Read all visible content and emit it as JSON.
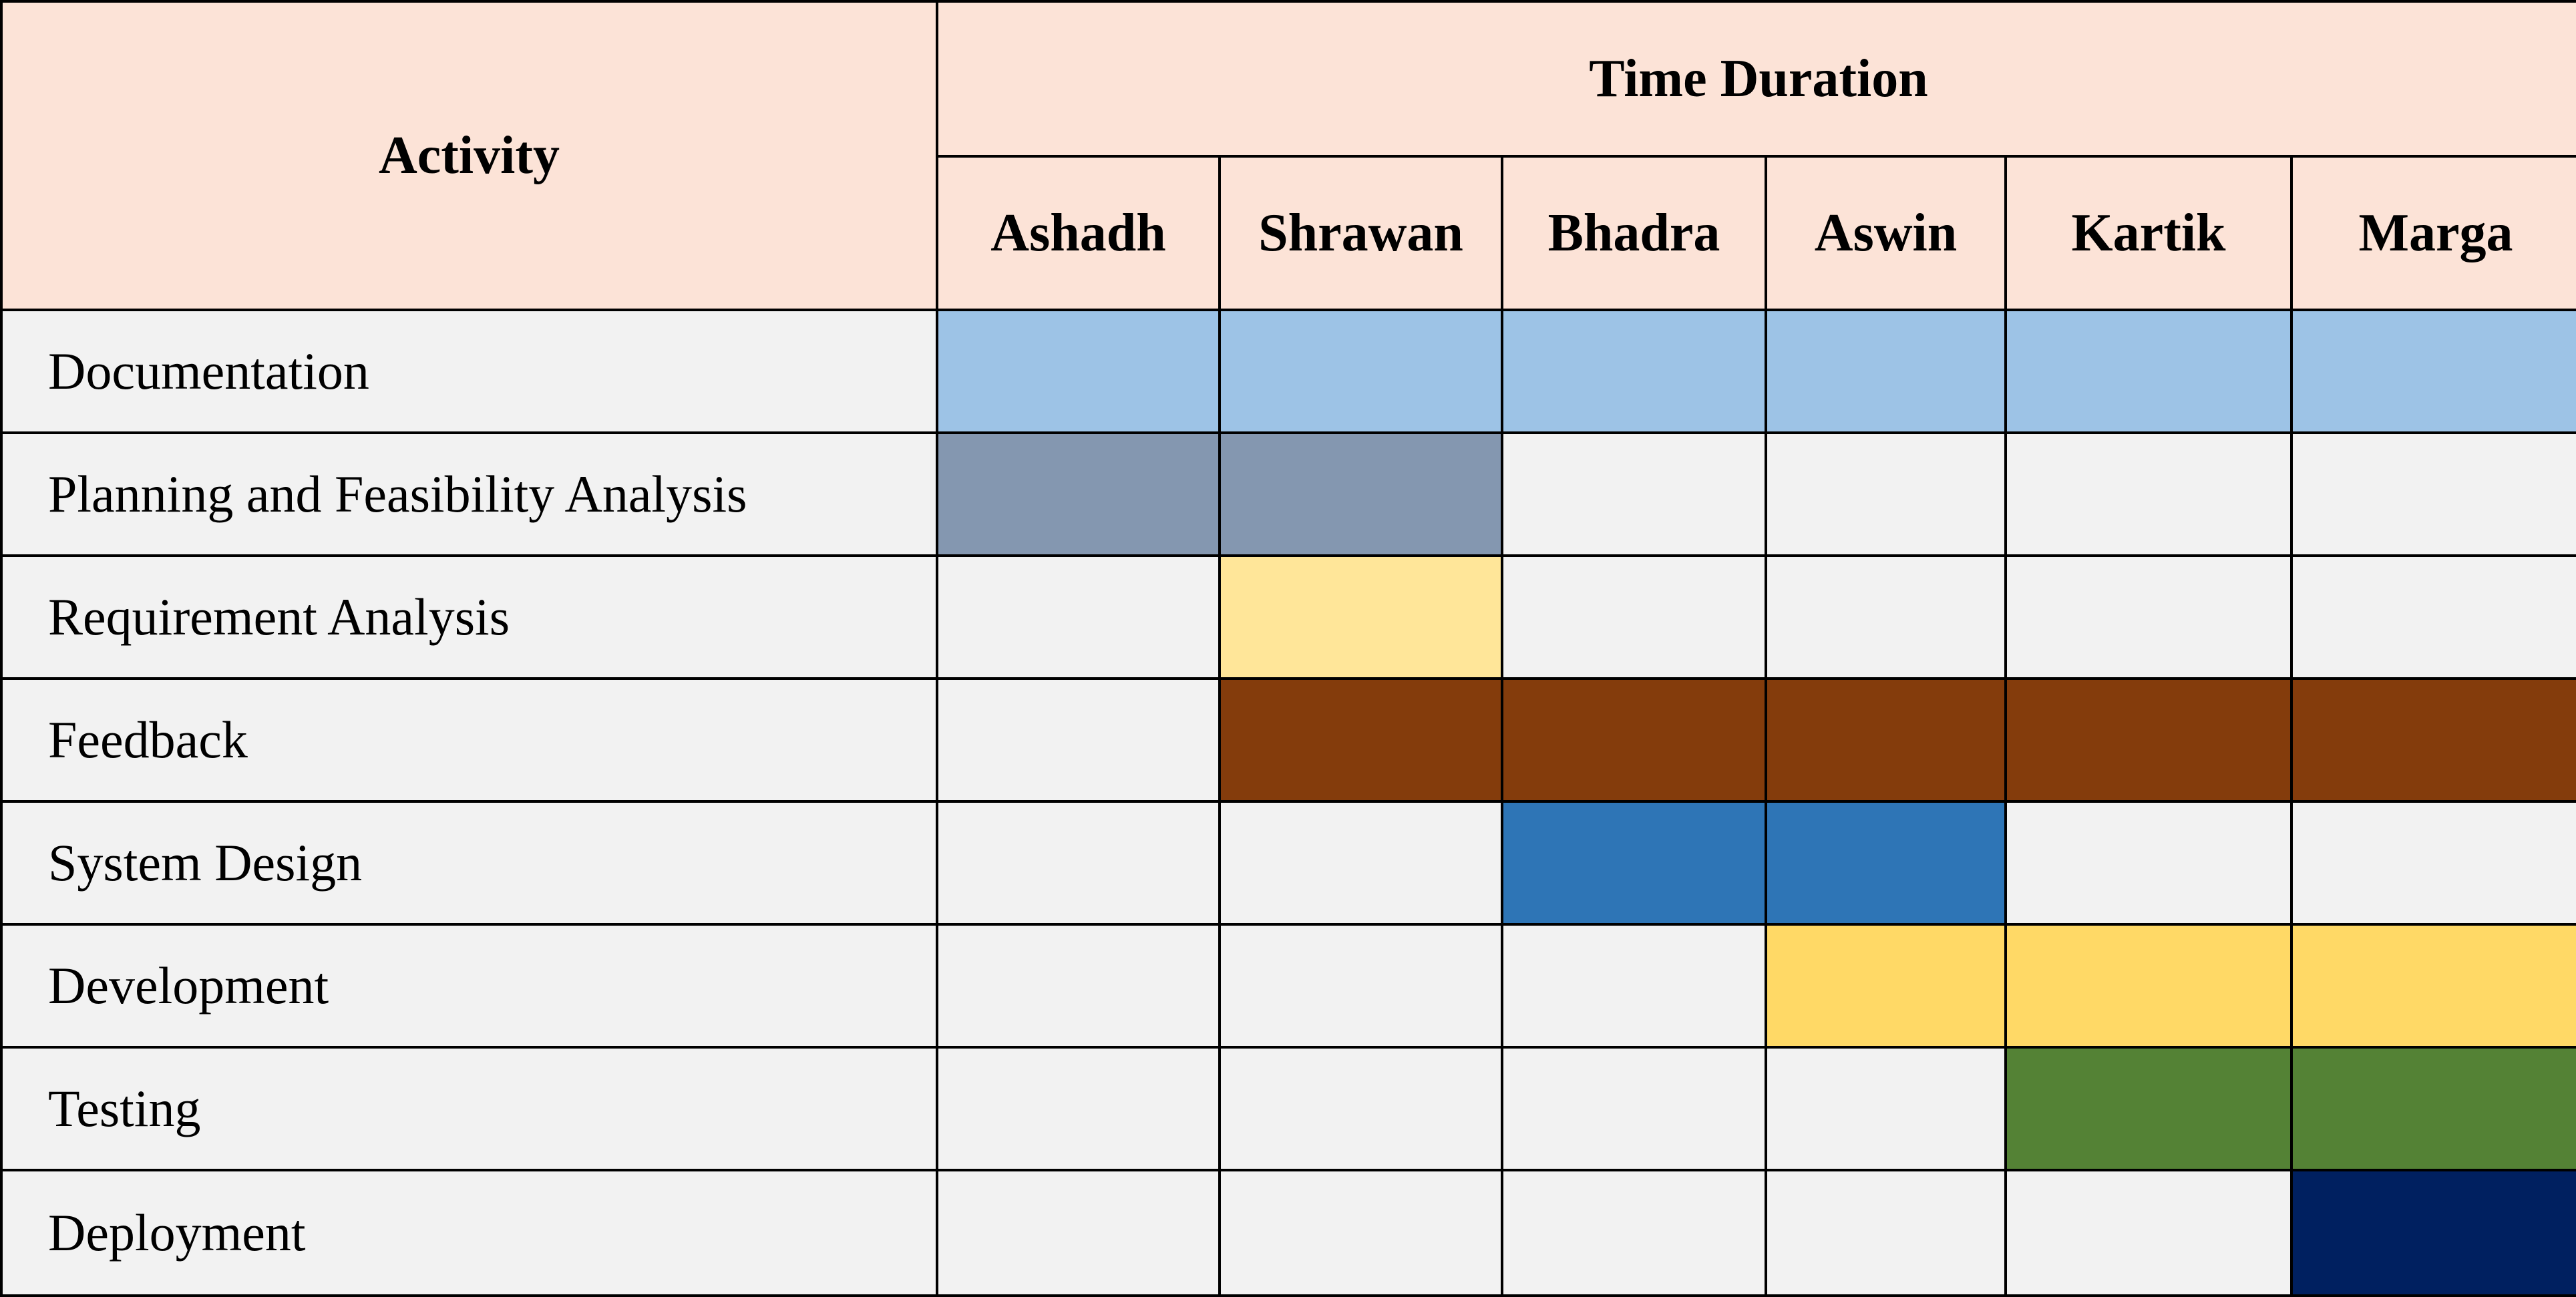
{
  "chart_data": {
    "type": "table",
    "activity_header": "Activity",
    "time_header": "Time Duration",
    "months": [
      "Ashadh",
      "Shrawan",
      "Bhadra",
      "Aswin",
      "Kartik",
      "Marga"
    ],
    "empty_color": "#f2f2f2",
    "header_color": "#fce3d7",
    "activities": [
      {
        "name": "Documentation",
        "start": 0,
        "end": 5,
        "color": "#9dc3e6"
      },
      {
        "name": "Planning and Feasibility Analysis",
        "start": 0,
        "end": 1,
        "color": "#8497b0"
      },
      {
        "name": "Requirement Analysis",
        "start": 1,
        "end": 1,
        "color": "#ffe699"
      },
      {
        "name": "Feedback",
        "start": 1,
        "end": 5,
        "color": "#843c0c"
      },
      {
        "name": "System Design",
        "start": 2,
        "end": 3,
        "color": "#2e75b6"
      },
      {
        "name": "Development",
        "start": 3,
        "end": 5,
        "color": "#ffd966"
      },
      {
        "name": "Testing",
        "start": 4,
        "end": 5,
        "color": "#548235"
      },
      {
        "name": "Deployment",
        "start": 5,
        "end": 5,
        "color": "#002060"
      }
    ]
  }
}
